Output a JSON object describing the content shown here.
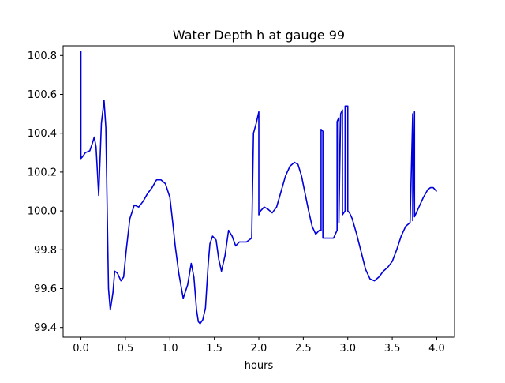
{
  "chart_data": {
    "type": "line",
    "title": "Water Depth h at gauge 99",
    "xlabel": "hours",
    "ylabel": "",
    "xlim": [
      -0.2,
      4.2
    ],
    "ylim": [
      99.35,
      100.85
    ],
    "grid": false,
    "xticks": [
      0.0,
      0.5,
      1.0,
      1.5,
      2.0,
      2.5,
      3.0,
      3.5,
      4.0
    ],
    "xtick_labels": [
      "0.0",
      "0.5",
      "1.0",
      "1.5",
      "2.0",
      "2.5",
      "3.0",
      "3.5",
      "4.0"
    ],
    "yticks": [
      99.4,
      99.6,
      99.8,
      100.0,
      100.2,
      100.4,
      100.6,
      100.8
    ],
    "ytick_labels": [
      "99.4",
      "99.6",
      "99.8",
      "100.0",
      "100.2",
      "100.4",
      "100.6",
      "100.8"
    ],
    "series": [
      {
        "color": "#0000dd",
        "x": [
          0.0,
          0.0,
          0.0,
          0.02,
          0.05,
          0.1,
          0.13,
          0.15,
          0.17,
          0.2,
          0.23,
          0.26,
          0.28,
          0.31,
          0.33,
          0.36,
          0.38,
          0.41,
          0.45,
          0.48,
          0.51,
          0.55,
          0.6,
          0.65,
          0.7,
          0.75,
          0.8,
          0.85,
          0.9,
          0.95,
          1.0,
          1.03,
          1.06,
          1.1,
          1.15,
          1.2,
          1.24,
          1.27,
          1.3,
          1.32,
          1.34,
          1.37,
          1.4,
          1.43,
          1.45,
          1.48,
          1.52,
          1.55,
          1.58,
          1.62,
          1.66,
          1.7,
          1.74,
          1.78,
          1.82,
          1.86,
          1.89,
          1.92,
          1.94,
          1.94,
          1.97,
          2.0,
          2.0,
          2.02,
          2.06,
          2.1,
          2.15,
          2.2,
          2.25,
          2.3,
          2.35,
          2.4,
          2.44,
          2.48,
          2.52,
          2.56,
          2.6,
          2.64,
          2.68,
          2.7,
          2.7,
          2.72,
          2.72,
          2.75,
          2.8,
          2.84,
          2.88,
          2.88,
          2.9,
          2.9,
          2.92,
          2.94,
          2.94,
          2.97,
          2.97,
          3.0,
          3.0,
          3.02,
          3.05,
          3.1,
          3.15,
          3.2,
          3.25,
          3.3,
          3.35,
          3.4,
          3.45,
          3.5,
          3.55,
          3.6,
          3.65,
          3.7,
          3.73,
          3.73,
          3.75,
          3.75,
          3.8,
          3.85,
          3.9,
          3.93,
          3.96,
          4.0
        ],
        "y": [
          100.27,
          100.82,
          100.27,
          100.28,
          100.3,
          100.31,
          100.35,
          100.38,
          100.33,
          100.08,
          100.45,
          100.57,
          100.43,
          99.6,
          99.49,
          99.58,
          99.69,
          99.68,
          99.64,
          99.66,
          99.8,
          99.96,
          100.03,
          100.02,
          100.05,
          100.09,
          100.12,
          100.16,
          100.16,
          100.14,
          100.07,
          99.95,
          99.82,
          99.68,
          99.55,
          99.62,
          99.73,
          99.66,
          99.49,
          99.43,
          99.42,
          99.44,
          99.5,
          99.72,
          99.83,
          99.87,
          99.85,
          99.75,
          99.69,
          99.77,
          99.9,
          99.87,
          99.82,
          99.84,
          99.84,
          99.84,
          99.85,
          99.86,
          100.4,
          100.4,
          100.45,
          100.51,
          99.98,
          100.0,
          100.02,
          100.01,
          99.99,
          100.02,
          100.1,
          100.18,
          100.23,
          100.25,
          100.24,
          100.18,
          100.09,
          100.0,
          99.92,
          99.88,
          99.9,
          99.9,
          100.42,
          100.41,
          99.86,
          99.86,
          99.86,
          99.86,
          99.9,
          100.46,
          100.48,
          99.94,
          100.5,
          100.52,
          99.98,
          100.0,
          100.54,
          100.54,
          100.0,
          99.99,
          99.96,
          99.88,
          99.79,
          99.7,
          99.65,
          99.64,
          99.66,
          99.69,
          99.71,
          99.74,
          99.8,
          99.87,
          99.92,
          99.94,
          100.5,
          99.95,
          100.51,
          99.97,
          100.02,
          100.07,
          100.11,
          100.12,
          100.12,
          100.1
        ]
      }
    ]
  }
}
